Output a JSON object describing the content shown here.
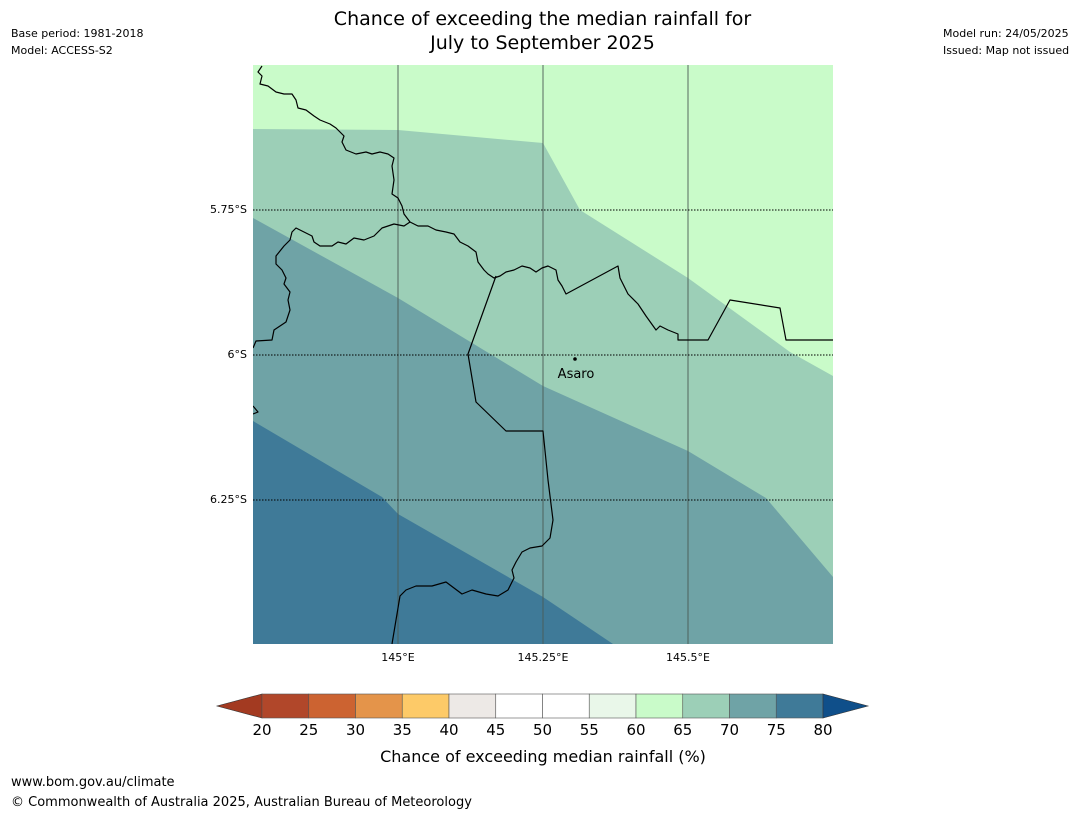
{
  "title": {
    "line1": "Chance of exceeding the median rainfall for",
    "line2": "July to September 2025"
  },
  "meta_left": {
    "base_period": "Base period: 1981-2018",
    "model": "Model: ACCESS-S2"
  },
  "meta_right": {
    "model_run": "Model run: 24/05/2025",
    "issued": "Issued: Map not issued"
  },
  "map": {
    "lat_labels": [
      "5.75°S",
      "6°S",
      "6.25°S"
    ],
    "lon_labels": [
      "145°E",
      "145.25°E",
      "145.5°E"
    ],
    "place": {
      "name": "Asaro"
    }
  },
  "colorbar": {
    "tick_labels": [
      "20",
      "25",
      "30",
      "35",
      "40",
      "45",
      "50",
      "55",
      "60",
      "65",
      "70",
      "75",
      "80"
    ],
    "colors": [
      "#a33a21",
      "#b1472a",
      "#cc6331",
      "#e4944a",
      "#fdca68",
      "#ede9e6",
      "#ffffff",
      "#ffffff",
      "#e9f7e9",
      "#c9fbc9",
      "#9ccfb7",
      "#6fa3a6",
      "#3f7a98",
      "#0f4f8a"
    ],
    "title": "Chance of exceeding median rainfall (%)"
  },
  "footer": {
    "url": "www.bom.gov.au/climate",
    "copyright": "© Commonwealth of Australia 2025, Australian Bureau of Meteorology"
  }
}
